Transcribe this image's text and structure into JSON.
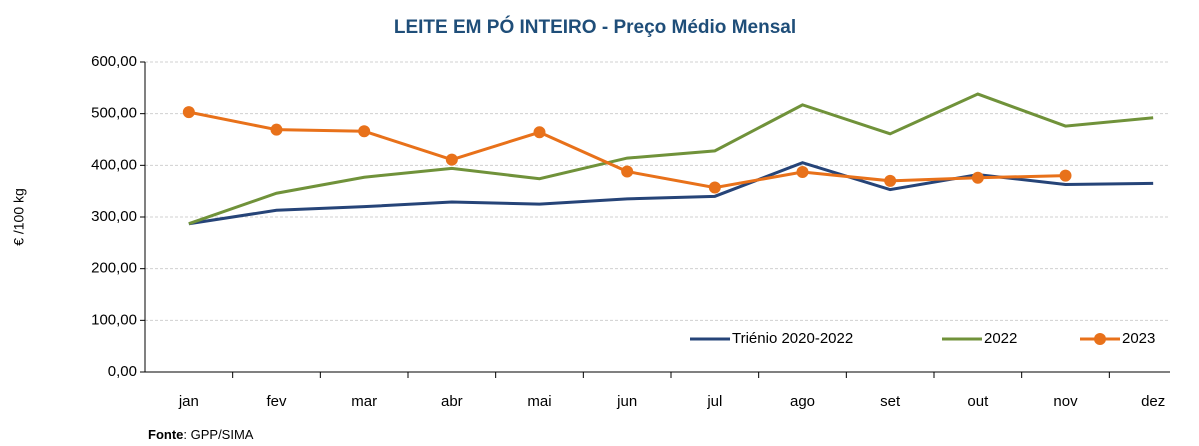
{
  "chart_data": {
    "type": "line",
    "title": "LEITE EM PÓ INTEIRO - Preço Médio Mensal",
    "y_label": "€ /100 kg",
    "source_label": "Fonte",
    "source_text": ": GPP/SIMA",
    "categories": [
      "jan",
      "fev",
      "mar",
      "abr",
      "mai",
      "jun",
      "jul",
      "ago",
      "set",
      "out",
      "nov",
      "dez"
    ],
    "series": [
      {
        "name": "Triénio  2020-2022",
        "color": "#264478",
        "marker": false,
        "values": [
          287,
          313,
          320,
          329,
          325,
          335,
          340,
          405,
          353,
          382,
          363,
          365
        ]
      },
      {
        "name": "2022",
        "color": "#70923a",
        "marker": false,
        "values": [
          287,
          346,
          377,
          394,
          374,
          414,
          428,
          517,
          461,
          538,
          476,
          492
        ]
      },
      {
        "name": "2023",
        "color": "#e8711a",
        "marker": true,
        "values": [
          503,
          469,
          466,
          411,
          464,
          388,
          357,
          387,
          370,
          376,
          380,
          null
        ]
      }
    ],
    "ylim": [
      0,
      600
    ],
    "yticks": [
      {
        "value": 0,
        "label": "0,00"
      },
      {
        "value": 100,
        "label": "100,00"
      },
      {
        "value": 200,
        "label": "200,00"
      },
      {
        "value": 300,
        "label": "300,00"
      },
      {
        "value": 400,
        "label": "400,00"
      },
      {
        "value": 500,
        "label": "500,00"
      },
      {
        "value": 600,
        "label": "600,00"
      }
    ],
    "grid": true,
    "legend": "bottom-right"
  }
}
